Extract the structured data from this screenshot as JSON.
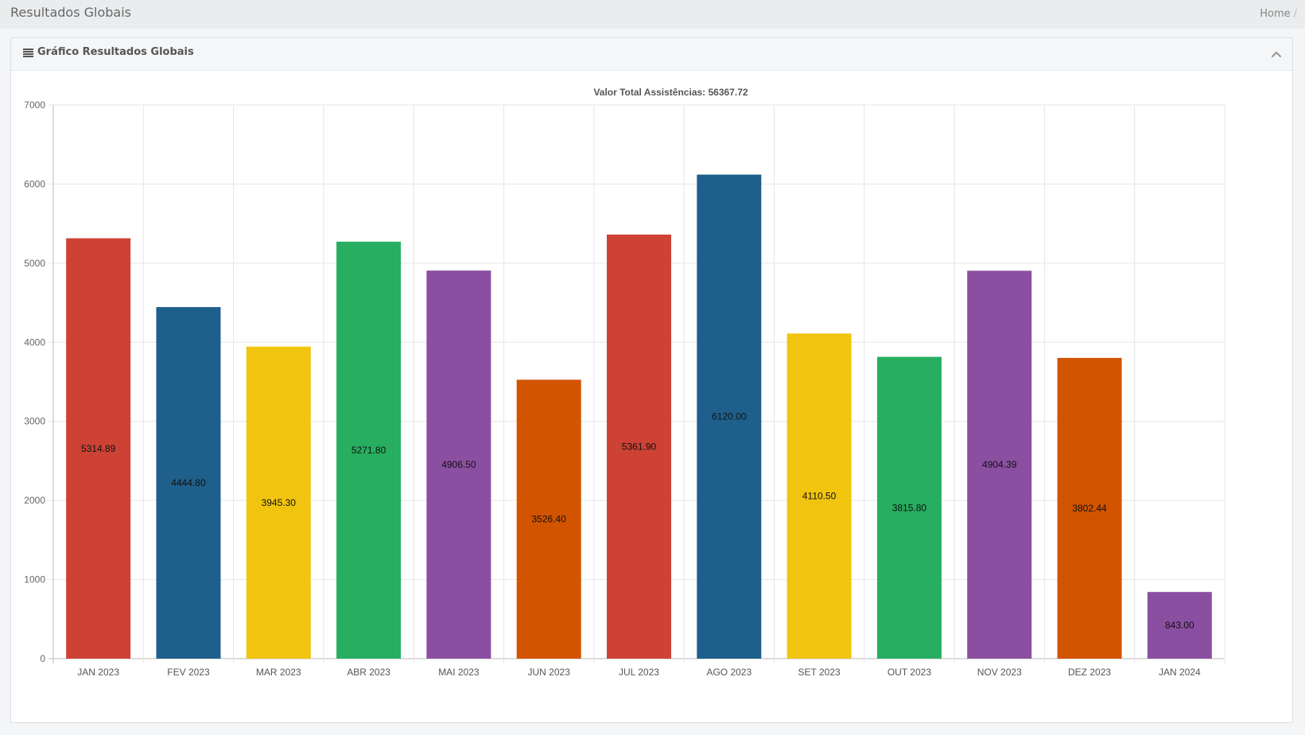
{
  "header": {
    "title": "Resultados Globais",
    "breadcrumb": [
      {
        "label": "Home"
      }
    ],
    "breadcrumb_sep": "/"
  },
  "panel": {
    "title": "Gráfico Resultados Globais",
    "icon": "list-icon",
    "collapse_icon": "chevron-up-icon"
  },
  "chart_data": {
    "type": "bar",
    "title": "Valor Total Assistências: 56367.72",
    "xlabel": "",
    "ylabel": "",
    "categories": [
      "JAN 2023",
      "FEV 2023",
      "MAR 2023",
      "ABR 2023",
      "MAI 2023",
      "JUN 2023",
      "JUL 2023",
      "AGO 2023",
      "SET 2023",
      "OUT 2023",
      "NOV 2023",
      "DEZ 2023",
      "JAN 2024"
    ],
    "values": [
      5314.89,
      4444.8,
      3945.3,
      5271.8,
      4906.5,
      3526.4,
      5361.9,
      6120.0,
      4110.5,
      3815.8,
      4904.39,
      3802.44,
      843.0
    ],
    "data_labels": [
      "5314.89",
      "4444.80",
      "3945.30",
      "5271.80",
      "4906.50",
      "3526.40",
      "5361.90",
      "6120.00",
      "4110.50",
      "3815.80",
      "4904.39",
      "3802.44",
      "843.00"
    ],
    "colors": [
      "#cd4234",
      "#1f5f8b",
      "#f1c40f",
      "#27ae60",
      "#8b4fa1",
      "#d35400",
      "#cd4234",
      "#1f5f8b",
      "#f1c40f",
      "#27ae60",
      "#8b4fa1",
      "#d35400",
      "#8b4fa1"
    ],
    "ylim": [
      0,
      7000
    ],
    "yticks": [
      "0",
      "1000",
      "2000",
      "3000",
      "4000",
      "5000",
      "6000",
      "7000"
    ],
    "grid": true,
    "legend": "none"
  }
}
